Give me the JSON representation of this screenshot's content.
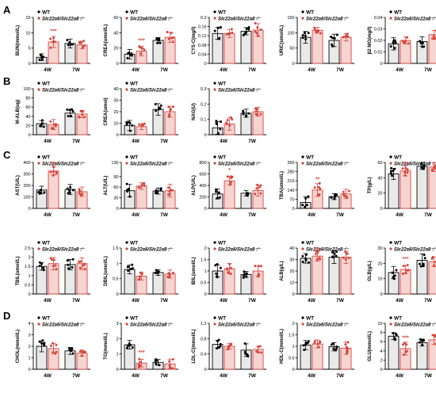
{
  "figure": {
    "legend_wt": "WT",
    "legend_ko": "Slc22a6/Slc22a8⁻⁄⁻",
    "colors": {
      "wt": "#e9e9e9",
      "ko": "#f6d4d1",
      "wt_stroke": "#000000",
      "ko_stroke": "#d7443b",
      "ko_point": "#d7443b"
    }
  },
  "chart_data": [
    {
      "type": "bar",
      "panel": "A",
      "ylabel": "BUN(mmol/L)",
      "ylim": [
        0,
        15
      ],
      "yticks": [
        0,
        5,
        10,
        15
      ],
      "categories": [
        "4W",
        "7W"
      ],
      "series": [
        {
          "name": "WT",
          "values": [
            2,
            6.5
          ]
        },
        {
          "name": "Slc22a6/Slc22a8⁻⁄⁻",
          "values": [
            7,
            6
          ]
        }
      ],
      "annotations": [
        {
          "group": 0,
          "text": "***"
        }
      ]
    },
    {
      "type": "bar",
      "ylabel": "CREA(umol/L)",
      "ylim": [
        0,
        60
      ],
      "yticks": [
        0,
        20,
        40,
        60
      ],
      "categories": [
        "4W",
        "7W"
      ],
      "series": [
        {
          "name": "WT",
          "values": [
            12,
            30
          ]
        },
        {
          "name": "Slc22a6/Slc22a8⁻⁄⁻",
          "values": [
            16,
            34
          ]
        }
      ],
      "annotations": [
        {
          "group": 0,
          "text": "***"
        }
      ]
    },
    {
      "type": "bar",
      "ylabel": "CYS-C(mg/l)",
      "ylim": [
        0,
        0.2
      ],
      "yticks": [
        0,
        0.04,
        0.08,
        0.12,
        0.16,
        0.2
      ],
      "categories": [
        "4W",
        "7W"
      ],
      "series": [
        {
          "name": "WT",
          "values": [
            0.13,
            0.14
          ]
        },
        {
          "name": "Slc22a6/Slc22a8⁻⁄⁻",
          "values": [
            0.13,
            0.145
          ]
        }
      ]
    },
    {
      "type": "bar",
      "ylabel": "URIC(umol/L)",
      "ylim": [
        0,
        150
      ],
      "yticks": [
        0,
        50,
        100,
        150
      ],
      "categories": [
        "4W",
        "7W"
      ],
      "series": [
        {
          "name": "WT",
          "values": [
            85,
            75
          ]
        },
        {
          "name": "Slc22a6/Slc22a8⁻⁄⁻",
          "values": [
            108,
            85
          ]
        }
      ]
    },
    {
      "type": "bar",
      "ylabel": "β2-MG(mg/l)",
      "ylim": [
        0,
        0.04
      ],
      "yticks": [
        0,
        0.01,
        0.02,
        0.03,
        0.04
      ],
      "categories": [
        "4W",
        "7W"
      ],
      "series": [
        {
          "name": "WT",
          "values": [
            0.017,
            0.019
          ]
        },
        {
          "name": "Slc22a6/Slc22a8⁻⁄⁻",
          "values": [
            0.02,
            0.025
          ]
        }
      ]
    },
    {
      "type": "bar",
      "panel": "B",
      "ylabel": "M-ALB(ug)",
      "ylim": [
        0,
        100
      ],
      "yticks": [
        0,
        20,
        40,
        60,
        80,
        100
      ],
      "categories": [
        "4W",
        "7W"
      ],
      "series": [
        {
          "name": "WT",
          "values": [
            24,
            47
          ]
        },
        {
          "name": "Slc22a6/Slc22a8⁻⁄⁻",
          "values": [
            22,
            45
          ]
        }
      ]
    },
    {
      "type": "bar",
      "ylabel": "CREA(umol)",
      "ylim": [
        0,
        40
      ],
      "yticks": [
        0,
        10,
        20,
        30,
        40
      ],
      "categories": [
        "4W",
        "7W"
      ],
      "series": [
        {
          "name": "WT",
          "values": [
            8,
            22
          ]
        },
        {
          "name": "Slc22a6/Slc22a8⁻⁄⁻",
          "values": [
            7,
            20
          ]
        }
      ]
    },
    {
      "type": "bar",
      "ylabel": "NAG(U)",
      "ylim": [
        0,
        0.3
      ],
      "yticks": [
        0,
        0.1,
        0.2,
        0.3
      ],
      "categories": [
        "4W",
        "7W"
      ],
      "series": [
        {
          "name": "WT",
          "values": [
            0.045,
            0.14
          ]
        },
        {
          "name": "Slc22a6/Slc22a8⁻⁄⁻",
          "values": [
            0.07,
            0.15
          ]
        }
      ]
    },
    {
      "type": "bar",
      "panel": "C",
      "ylabel": "AST(U/L)",
      "ylim": [
        0,
        400
      ],
      "yticks": [
        0,
        100,
        200,
        300,
        400
      ],
      "categories": [
        "4W",
        "7W"
      ],
      "series": [
        {
          "name": "WT",
          "values": [
            160,
            165
          ]
        },
        {
          "name": "Slc22a6/Slc22a8⁻⁄⁻",
          "values": [
            325,
            145
          ]
        }
      ],
      "annotations": [
        {
          "group": 0,
          "text": "***"
        }
      ]
    },
    {
      "type": "bar",
      "ylabel": "ALT(U/L)",
      "ylim": [
        0,
        130
      ],
      "yticks": [
        0,
        30,
        60,
        90,
        130
      ],
      "categories": [
        "4W",
        "7W"
      ],
      "series": [
        {
          "name": "WT",
          "values": [
            50,
            49
          ]
        },
        {
          "name": "Slc22a6/Slc22a8⁻⁄⁻",
          "values": [
            63,
            50
          ]
        }
      ]
    },
    {
      "type": "bar",
      "ylabel": "ALP(U/L)",
      "ylim": [
        0,
        800
      ],
      "yticks": [
        0,
        200,
        400,
        600,
        800
      ],
      "categories": [
        "4W",
        "7W"
      ],
      "series": [
        {
          "name": "WT",
          "values": [
            250,
            265
          ]
        },
        {
          "name": "Slc22a6/Slc22a8⁻⁄⁻",
          "values": [
            480,
            310
          ]
        }
      ],
      "annotations": [
        {
          "group": 0,
          "text": "*"
        }
      ]
    },
    {
      "type": "bar",
      "ylabel": "TBA(umol/L)",
      "ylim": [
        0,
        350
      ],
      "yticks": [
        0,
        70,
        140,
        210,
        280,
        350
      ],
      "categories": [
        "4W",
        "7W"
      ],
      "series": [
        {
          "name": "WT",
          "values": [
            45,
            90
          ]
        },
        {
          "name": "Slc22a6/Slc22a8⁻⁄⁻",
          "values": [
            140,
            110
          ]
        }
      ],
      "annotations": [
        {
          "group": 0,
          "text": "**"
        }
      ]
    },
    {
      "type": "bar",
      "ylabel": "TP(g/L)",
      "ylim": [
        0,
        60
      ],
      "yticks": [
        0,
        20,
        40,
        60
      ],
      "categories": [
        "4W",
        "7W"
      ],
      "series": [
        {
          "name": "WT",
          "values": [
            45,
            55
          ]
        },
        {
          "name": "Slc22a6/Slc22a8⁻⁄⁻",
          "values": [
            49,
            54
          ]
        }
      ],
      "annotations": [
        {
          "group": 0,
          "text": "***"
        }
      ]
    },
    {
      "type": "bar",
      "ylabel": "TBIL(umol/L)",
      "ylim": [
        0,
        2.5
      ],
      "yticks": [
        0,
        0.5,
        1,
        1.5,
        2,
        2.5
      ],
      "categories": [
        "4W",
        "7W"
      ],
      "series": [
        {
          "name": "WT",
          "values": [
            1.5,
            1.6
          ]
        },
        {
          "name": "Slc22a6/Slc22a8⁻⁄⁻",
          "values": [
            1.65,
            1.65
          ]
        }
      ]
    },
    {
      "type": "bar",
      "ylabel": "DBIL(umol/L)",
      "ylim": [
        0,
        1.5
      ],
      "yticks": [
        0,
        0.5,
        1,
        1.5
      ],
      "categories": [
        "4W",
        "7W"
      ],
      "series": [
        {
          "name": "WT",
          "values": [
            0.8,
            0.7
          ]
        },
        {
          "name": "Slc22a6/Slc22a8⁻⁄⁻",
          "values": [
            0.58,
            0.65
          ]
        }
      ]
    },
    {
      "type": "bar",
      "ylabel": "IBIL(umol/L)",
      "ylim": [
        0,
        2
      ],
      "yticks": [
        0,
        0.5,
        1,
        1.5,
        2
      ],
      "categories": [
        "4W",
        "7W"
      ],
      "series": [
        {
          "name": "WT",
          "values": [
            1.0,
            0.85
          ]
        },
        {
          "name": "Slc22a6/Slc22a8⁻⁄⁻",
          "values": [
            1.1,
            1.0
          ]
        }
      ]
    },
    {
      "type": "bar",
      "ylabel": "ALB(g/L)",
      "ylim": [
        0,
        40
      ],
      "yticks": [
        0,
        10,
        20,
        30,
        40
      ],
      "categories": [
        "4W",
        "7W"
      ],
      "series": [
        {
          "name": "WT",
          "values": [
            31,
            32
          ]
        },
        {
          "name": "Slc22a6/Slc22a8⁻⁄⁻",
          "values": [
            33,
            32
          ]
        }
      ],
      "annotations": [
        {
          "group": 0,
          "text": "***"
        }
      ]
    },
    {
      "type": "bar",
      "ylabel": "GLB(g/L)",
      "ylim": [
        0,
        30
      ],
      "yticks": [
        0,
        10,
        20,
        30
      ],
      "categories": [
        "4W",
        "7W"
      ],
      "series": [
        {
          "name": "WT",
          "values": [
            14,
            22
          ]
        },
        {
          "name": "Slc22a6/Slc22a8⁻⁄⁻",
          "values": [
            16,
            21
          ]
        }
      ],
      "annotations": [
        {
          "group": 0,
          "text": "***"
        }
      ]
    },
    {
      "type": "bar",
      "panel": "D",
      "ylabel": "CHOL(mmol/L)",
      "ylim": [
        0,
        4
      ],
      "yticks": [
        0,
        1,
        2,
        3,
        4
      ],
      "categories": [
        "4W",
        "7W"
      ],
      "series": [
        {
          "name": "WT",
          "values": [
            2.0,
            1.6
          ]
        },
        {
          "name": "Slc22a6/Slc22a8⁻⁄⁻",
          "values": [
            1.8,
            1.4
          ]
        }
      ]
    },
    {
      "type": "bar",
      "ylabel": "TG(mmol/L)",
      "ylim": [
        0,
        3
      ],
      "yticks": [
        0,
        1,
        2,
        3
      ],
      "categories": [
        "4W",
        "7W"
      ],
      "series": [
        {
          "name": "WT",
          "values": [
            1.6,
            0.45
          ]
        },
        {
          "name": "Slc22a6/Slc22a8⁻⁄⁻",
          "values": [
            0.4,
            0.35
          ]
        }
      ],
      "annotations": [
        {
          "group": 0,
          "text": "***"
        }
      ]
    },
    {
      "type": "bar",
      "ylabel": "LDL-C(mmol/L)",
      "ylim": [
        0,
        1.2
      ],
      "yticks": [
        0,
        0.4,
        0.8,
        1.2
      ],
      "categories": [
        "4W",
        "7W"
      ],
      "series": [
        {
          "name": "WT",
          "values": [
            0.65,
            0.5
          ]
        },
        {
          "name": "Slc22a6/Slc22a8⁻⁄⁻",
          "values": [
            0.6,
            0.52
          ]
        }
      ]
    },
    {
      "type": "bar",
      "ylabel": "HDL-C(mmol/L)",
      "ylim": [
        0,
        2
      ],
      "yticks": [
        0,
        0.5,
        1,
        1.5,
        2
      ],
      "categories": [
        "4W",
        "7W"
      ],
      "series": [
        {
          "name": "WT",
          "values": [
            1.05,
            0.98
          ]
        },
        {
          "name": "Slc22a6/Slc22a8⁻⁄⁻",
          "values": [
            1.1,
            0.92
          ]
        }
      ]
    },
    {
      "type": "bar",
      "ylabel": "GLU(mmol/L)",
      "ylim": [
        0,
        10
      ],
      "yticks": [
        0,
        2,
        4,
        6,
        8,
        10
      ],
      "categories": [
        "4W",
        "7W"
      ],
      "series": [
        {
          "name": "WT",
          "values": [
            7.2,
            5.8
          ]
        },
        {
          "name": "Slc22a6/Slc22a8⁻⁄⁻",
          "values": [
            4.5,
            6.4
          ]
        }
      ],
      "annotations": [
        {
          "group": 0,
          "text": "***"
        }
      ]
    }
  ]
}
